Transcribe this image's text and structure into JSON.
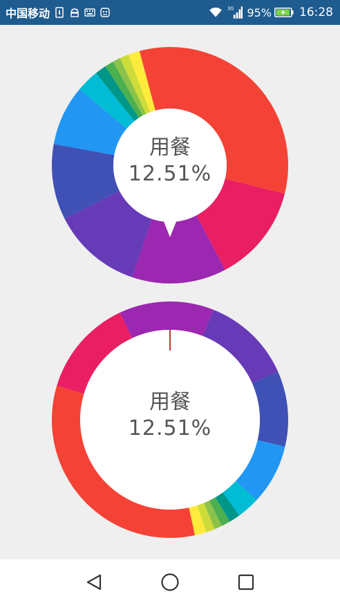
{
  "status_bar": {
    "carrier": "中国移动",
    "network_label": "3G",
    "battery_text": "95%",
    "battery_level": 0.95,
    "time": "16:28"
  },
  "colors": {
    "status_bar_bg": "#1e5b8f",
    "page_bg": "#efefef",
    "center_fill": "#ffffff",
    "label_text": "#555555",
    "pointer": "#c0392b"
  },
  "chart_data": [
    {
      "type": "pie",
      "variant": "donut",
      "selected_label": "用餐",
      "selected_value": "12.51%",
      "slices": [
        {
          "color": "#f44336",
          "value": 32.0
        },
        {
          "color": "#e91e63",
          "value": 13.0
        },
        {
          "color": "#9c27b0",
          "value": 12.51
        },
        {
          "color": "#673ab7",
          "value": 12.0
        },
        {
          "color": "#3f51b5",
          "value": 10.0
        },
        {
          "color": "#2196f3",
          "value": 8.0
        },
        {
          "color": "#00bcd4",
          "value": 3.0
        },
        {
          "color": "#009688",
          "value": 1.5
        },
        {
          "color": "#4caf50",
          "value": 1.2
        },
        {
          "color": "#8bc34a",
          "value": 1.0
        },
        {
          "color": "#cddc39",
          "value": 1.2
        },
        {
          "color": "#ffeb3b",
          "value": 1.5
        }
      ]
    },
    {
      "type": "pie",
      "variant": "ring",
      "selected_label": "用餐",
      "selected_value": "12.51%",
      "slices": [
        {
          "color": "#9c27b0",
          "value": 12.51
        },
        {
          "color": "#673ab7",
          "value": 12.0
        },
        {
          "color": "#3f51b5",
          "value": 10.0
        },
        {
          "color": "#2196f3",
          "value": 8.0
        },
        {
          "color": "#00bcd4",
          "value": 3.0
        },
        {
          "color": "#009688",
          "value": 1.5
        },
        {
          "color": "#4caf50",
          "value": 1.2
        },
        {
          "color": "#8bc34a",
          "value": 1.0
        },
        {
          "color": "#cddc39",
          "value": 1.2
        },
        {
          "color": "#ffeb3b",
          "value": 1.5
        },
        {
          "color": "#f44336",
          "value": 32.0
        },
        {
          "color": "#e91e63",
          "value": 13.0
        }
      ]
    }
  ],
  "nav_bar": {
    "back": "back-icon",
    "home": "home-icon",
    "recents": "recents-icon"
  }
}
